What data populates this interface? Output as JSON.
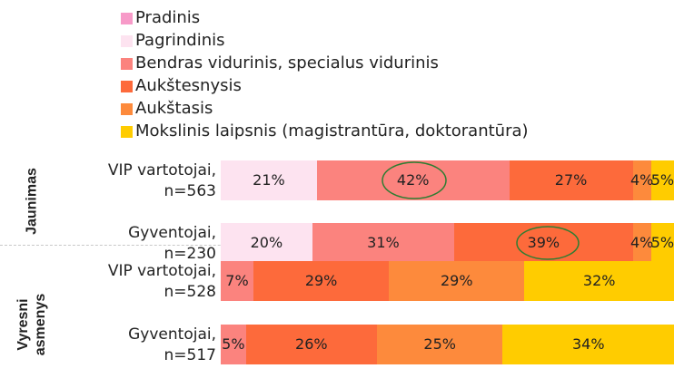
{
  "chart_data": {
    "type": "stacked-bar-horizontal",
    "groups": [
      "Jaunimas",
      "Vyresni\nasmenys"
    ],
    "categories": [
      "VIP vartotojai,\nn=563",
      "Gyventojai,\nn=230",
      "VIP vartotojai,\nn=528",
      "Gyventojai,\nn=517"
    ],
    "series": [
      {
        "name": "Pradinis",
        "color": "#f79ac8",
        "values": [
          0,
          0,
          0,
          0
        ],
        "value_labels": [
          null,
          null,
          null,
          null
        ]
      },
      {
        "name": "Pagrindinis",
        "color": "#fde3f0",
        "values": [
          21,
          20,
          0,
          0
        ],
        "value_labels": [
          "21%",
          "20%",
          null,
          null
        ]
      },
      {
        "name": "Bendras vidurinis, specialus vidurinis",
        "color": "#fb837e",
        "values": [
          42,
          31,
          7,
          5
        ],
        "value_labels": [
          "42%",
          "31%",
          "7%",
          "5%"
        ]
      },
      {
        "name": "Aukštesnysis",
        "color": "#fd6a3b",
        "values": [
          27,
          39,
          29,
          26
        ],
        "value_labels": [
          "27%",
          "39%",
          "29%",
          "26%"
        ]
      },
      {
        "name": "Aukštasis",
        "color": "#fd8a3c",
        "values": [
          4,
          4,
          29,
          25
        ],
        "value_labels": [
          "4%",
          "4%",
          "29%",
          "25%"
        ]
      },
      {
        "name": "Mokslinis laipsnis (magistrantūra, doktorantūra)",
        "color": "#ffcc00",
        "values": [
          5,
          5,
          32,
          34
        ],
        "value_labels": [
          "5%",
          "5%",
          "32%",
          "34%"
        ]
      }
    ]
  }
}
